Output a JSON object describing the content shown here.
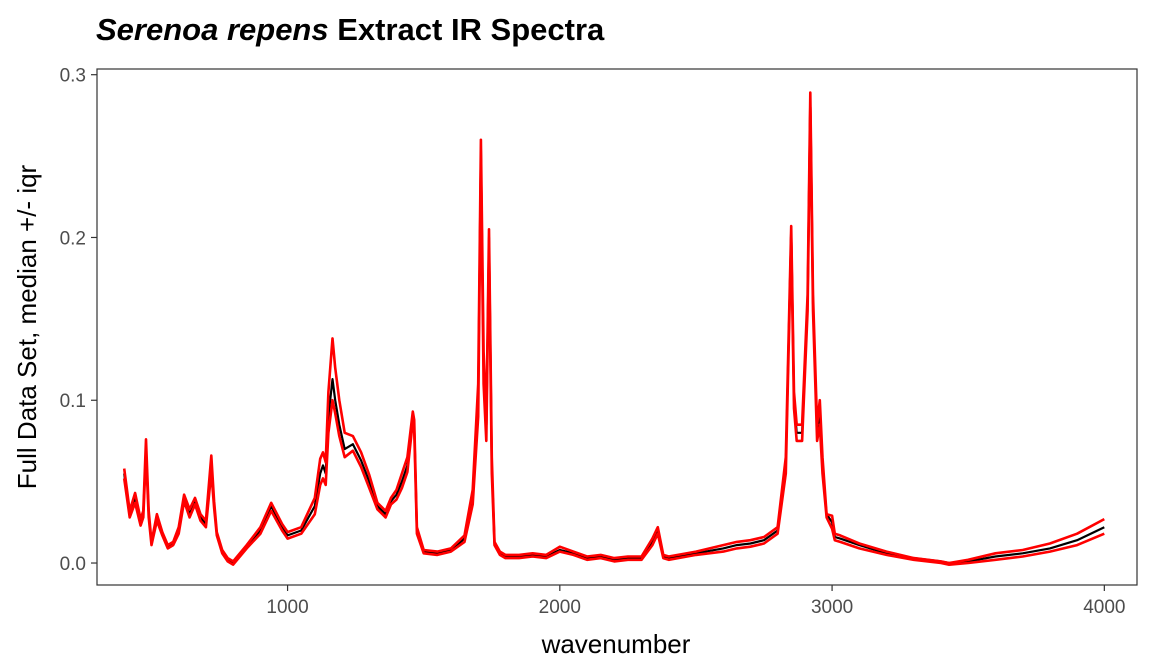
{
  "chart_data": {
    "type": "line",
    "title_italic": "Serenoa repens",
    "title_rest": " Extract IR Spectra",
    "xlabel": "wavenumber",
    "ylabel": "Full Data Set, median +/- iqr",
    "xlim": [
      400,
      4000
    ],
    "ylim": [
      0.0,
      0.3
    ],
    "xticks": [
      1000,
      2000,
      3000,
      4000
    ],
    "yticks": [
      0.0,
      0.1,
      0.2,
      0.3
    ],
    "ytick_labels": [
      "0.0",
      "0.1",
      "0.2",
      "0.3"
    ],
    "grid": false,
    "legend": "none",
    "colors": {
      "median": "#000000",
      "iqr": "#ff0000"
    },
    "series": [
      {
        "role": "median",
        "x": [
          400,
          420,
          440,
          460,
          470,
          480,
          490,
          500,
          520,
          540,
          560,
          580,
          600,
          620,
          640,
          660,
          680,
          700,
          720,
          730,
          740,
          760,
          780,
          800,
          850,
          900,
          940,
          980,
          1000,
          1050,
          1100,
          1120,
          1130,
          1140,
          1150,
          1165,
          1175,
          1190,
          1210,
          1240,
          1270,
          1300,
          1330,
          1360,
          1380,
          1400,
          1420,
          1440,
          1460,
          1465,
          1475,
          1500,
          1550,
          1600,
          1650,
          1680,
          1700,
          1710,
          1720,
          1730,
          1740,
          1750,
          1760,
          1780,
          1800,
          1850,
          1900,
          1950,
          2000,
          2050,
          2100,
          2150,
          2200,
          2250,
          2300,
          2340,
          2360,
          2380,
          2400,
          2500,
          2600,
          2650,
          2700,
          2750,
          2800,
          2830,
          2850,
          2860,
          2870,
          2890,
          2910,
          2920,
          2930,
          2945,
          2955,
          2965,
          2980,
          3000,
          3010,
          3030,
          3100,
          3200,
          3300,
          3400,
          3430,
          3500,
          3600,
          3700,
          3800,
          3900,
          4000
        ],
        "y": [
          0.055,
          0.03,
          0.04,
          0.025,
          0.03,
          0.072,
          0.03,
          0.012,
          0.028,
          0.018,
          0.01,
          0.012,
          0.02,
          0.04,
          0.03,
          0.038,
          0.028,
          0.024,
          0.06,
          0.036,
          0.018,
          0.007,
          0.002,
          0.0,
          0.01,
          0.02,
          0.035,
          0.022,
          0.017,
          0.02,
          0.035,
          0.055,
          0.06,
          0.055,
          0.09,
          0.113,
          0.1,
          0.085,
          0.07,
          0.073,
          0.063,
          0.05,
          0.035,
          0.03,
          0.038,
          0.042,
          0.05,
          0.06,
          0.09,
          0.085,
          0.02,
          0.007,
          0.006,
          0.008,
          0.015,
          0.04,
          0.1,
          0.255,
          0.12,
          0.08,
          0.2,
          0.06,
          0.012,
          0.006,
          0.004,
          0.004,
          0.005,
          0.004,
          0.008,
          0.006,
          0.003,
          0.004,
          0.002,
          0.003,
          0.003,
          0.013,
          0.02,
          0.004,
          0.003,
          0.006,
          0.009,
          0.011,
          0.012,
          0.014,
          0.02,
          0.06,
          0.205,
          0.1,
          0.08,
          0.08,
          0.16,
          0.285,
          0.16,
          0.08,
          0.09,
          0.06,
          0.03,
          0.025,
          0.016,
          0.015,
          0.011,
          0.006,
          0.003,
          0.001,
          0.0,
          0.001,
          0.004,
          0.006,
          0.009,
          0.014,
          0.022
        ]
      },
      {
        "role": "upper",
        "x": [
          400,
          420,
          440,
          460,
          470,
          480,
          490,
          500,
          520,
          540,
          560,
          580,
          600,
          620,
          640,
          660,
          680,
          700,
          720,
          730,
          740,
          760,
          780,
          800,
          850,
          900,
          940,
          980,
          1000,
          1050,
          1100,
          1120,
          1130,
          1140,
          1150,
          1165,
          1175,
          1190,
          1210,
          1240,
          1270,
          1300,
          1330,
          1360,
          1380,
          1400,
          1420,
          1440,
          1460,
          1465,
          1475,
          1500,
          1550,
          1600,
          1650,
          1680,
          1700,
          1710,
          1720,
          1730,
          1740,
          1750,
          1760,
          1780,
          1800,
          1850,
          1900,
          1950,
          2000,
          2050,
          2100,
          2150,
          2200,
          2250,
          2300,
          2340,
          2360,
          2380,
          2400,
          2500,
          2600,
          2650,
          2700,
          2750,
          2800,
          2830,
          2850,
          2860,
          2870,
          2890,
          2910,
          2920,
          2930,
          2945,
          2955,
          2965,
          2980,
          3000,
          3010,
          3030,
          3100,
          3200,
          3300,
          3400,
          3430,
          3500,
          3600,
          3700,
          3800,
          3900,
          4000
        ],
        "y": [
          0.058,
          0.032,
          0.043,
          0.027,
          0.032,
          0.076,
          0.032,
          0.013,
          0.03,
          0.019,
          0.011,
          0.013,
          0.022,
          0.042,
          0.033,
          0.04,
          0.03,
          0.026,
          0.066,
          0.038,
          0.019,
          0.008,
          0.003,
          0.001,
          0.011,
          0.022,
          0.037,
          0.024,
          0.019,
          0.022,
          0.04,
          0.064,
          0.068,
          0.062,
          0.105,
          0.138,
          0.12,
          0.1,
          0.08,
          0.078,
          0.068,
          0.054,
          0.037,
          0.032,
          0.04,
          0.045,
          0.055,
          0.065,
          0.093,
          0.088,
          0.022,
          0.008,
          0.007,
          0.009,
          0.017,
          0.045,
          0.11,
          0.26,
          0.13,
          0.085,
          0.205,
          0.065,
          0.013,
          0.007,
          0.005,
          0.005,
          0.006,
          0.005,
          0.01,
          0.007,
          0.004,
          0.005,
          0.003,
          0.004,
          0.004,
          0.015,
          0.022,
          0.005,
          0.004,
          0.007,
          0.011,
          0.013,
          0.014,
          0.016,
          0.022,
          0.065,
          0.207,
          0.105,
          0.085,
          0.085,
          0.165,
          0.289,
          0.165,
          0.085,
          0.1,
          0.065,
          0.03,
          0.029,
          0.018,
          0.017,
          0.012,
          0.007,
          0.003,
          0.001,
          0.0,
          0.002,
          0.006,
          0.008,
          0.012,
          0.018,
          0.027
        ]
      },
      {
        "role": "lower",
        "x": [
          400,
          420,
          440,
          460,
          470,
          480,
          490,
          500,
          520,
          540,
          560,
          580,
          600,
          620,
          640,
          660,
          680,
          700,
          720,
          730,
          740,
          760,
          780,
          800,
          850,
          900,
          940,
          980,
          1000,
          1050,
          1100,
          1120,
          1130,
          1140,
          1150,
          1165,
          1175,
          1190,
          1210,
          1240,
          1270,
          1300,
          1330,
          1360,
          1380,
          1400,
          1420,
          1440,
          1460,
          1465,
          1475,
          1500,
          1550,
          1600,
          1650,
          1680,
          1700,
          1710,
          1720,
          1730,
          1740,
          1750,
          1760,
          1780,
          1800,
          1850,
          1900,
          1950,
          2000,
          2050,
          2100,
          2150,
          2200,
          2250,
          2300,
          2340,
          2360,
          2380,
          2400,
          2500,
          2600,
          2650,
          2700,
          2750,
          2800,
          2830,
          2850,
          2860,
          2870,
          2890,
          2910,
          2920,
          2930,
          2945,
          2955,
          2965,
          2980,
          3000,
          3010,
          3030,
          3100,
          3200,
          3300,
          3400,
          3430,
          3500,
          3600,
          3700,
          3800,
          3900,
          4000
        ],
        "y": [
          0.052,
          0.028,
          0.037,
          0.023,
          0.028,
          0.068,
          0.028,
          0.011,
          0.026,
          0.017,
          0.009,
          0.011,
          0.018,
          0.038,
          0.028,
          0.036,
          0.026,
          0.022,
          0.056,
          0.034,
          0.017,
          0.006,
          0.001,
          -0.001,
          0.009,
          0.018,
          0.032,
          0.02,
          0.015,
          0.018,
          0.03,
          0.048,
          0.052,
          0.048,
          0.08,
          0.1,
          0.092,
          0.078,
          0.065,
          0.069,
          0.059,
          0.046,
          0.033,
          0.028,
          0.036,
          0.039,
          0.046,
          0.056,
          0.087,
          0.082,
          0.018,
          0.006,
          0.005,
          0.007,
          0.013,
          0.036,
          0.09,
          0.248,
          0.11,
          0.075,
          0.195,
          0.055,
          0.011,
          0.005,
          0.003,
          0.003,
          0.004,
          0.003,
          0.007,
          0.005,
          0.002,
          0.003,
          0.001,
          0.002,
          0.002,
          0.011,
          0.018,
          0.003,
          0.002,
          0.005,
          0.007,
          0.009,
          0.01,
          0.012,
          0.018,
          0.055,
          0.2,
          0.095,
          0.075,
          0.075,
          0.155,
          0.28,
          0.155,
          0.075,
          0.085,
          0.055,
          0.028,
          0.021,
          0.014,
          0.013,
          0.009,
          0.005,
          0.002,
          0.0,
          -0.001,
          0.0,
          0.002,
          0.004,
          0.007,
          0.011,
          0.018
        ]
      }
    ]
  }
}
